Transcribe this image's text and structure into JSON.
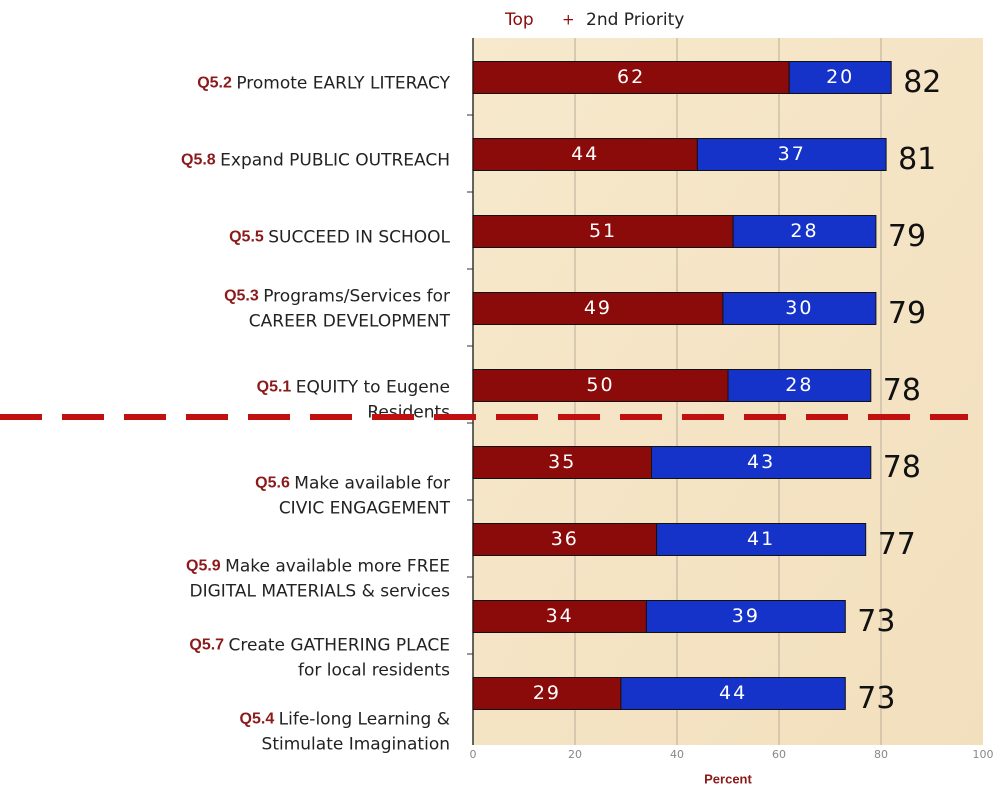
{
  "chart_data": {
    "type": "stacked_barh",
    "categories": [
      {
        "code": "Q5.2",
        "text": [
          "Promote EARLY LITERACY"
        ]
      },
      {
        "code": "Q5.8",
        "text": [
          "Expand PUBLIC OUTREACH"
        ]
      },
      {
        "code": "Q5.5",
        "text": [
          "SUCCEED IN SCHOOL"
        ]
      },
      {
        "code": "Q5.3",
        "text": [
          "Programs/Services for",
          "CAREER DEVELOPMENT"
        ]
      },
      {
        "code": "Q5.1",
        "text": [
          "EQUITY to Eugene",
          "Residents"
        ]
      },
      {
        "code": "Q5.6",
        "text": [
          "Make available for",
          "CIVIC ENGAGEMENT"
        ]
      },
      {
        "code": "Q5.9",
        "text": [
          "Make available more FREE",
          "DIGITAL MATERIALS & services"
        ]
      },
      {
        "code": "Q5.7",
        "text": [
          "Create GATHERING PLACE",
          "for local residents"
        ]
      },
      {
        "code": "Q5.4",
        "text": [
          "Life-long Learning &",
          "Stimulate Imagination"
        ]
      }
    ],
    "series": [
      {
        "name": "Top",
        "color": "#8b0a0a",
        "values": [
          62,
          44,
          51,
          49,
          50,
          35,
          36,
          34,
          29
        ]
      },
      {
        "name": "2nd Priority",
        "color": "#1533c8",
        "values": [
          20,
          37,
          28,
          30,
          28,
          43,
          41,
          39,
          44
        ]
      }
    ],
    "totals": [
      82,
      81,
      79,
      79,
      78,
      78,
      77,
      73,
      73
    ],
    "legend_separator": "+",
    "xlabel": "Percent",
    "xlim": [
      0,
      100
    ],
    "xticks": [
      0,
      20,
      40,
      60,
      80,
      100
    ],
    "grid": true
  }
}
